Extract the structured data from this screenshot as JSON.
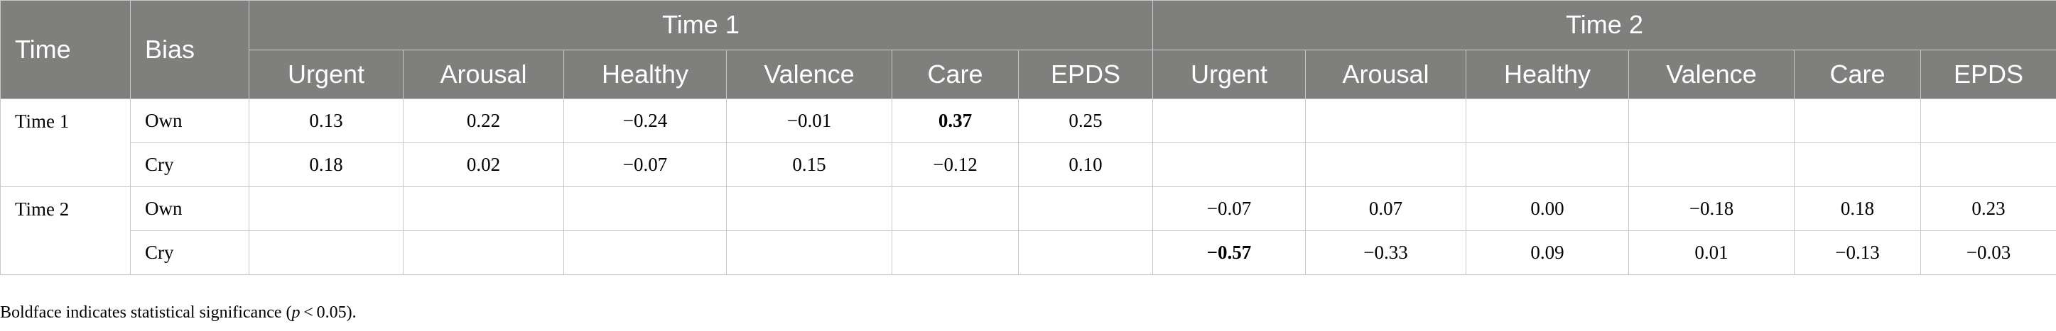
{
  "table": {
    "corner_time": "Time",
    "corner_bias": "Bias",
    "groups": [
      "Time 1",
      "Time 2"
    ],
    "columns": [
      "Urgent",
      "Arousal",
      "Healthy",
      "Valence",
      "Care",
      "EPDS",
      "Urgent",
      "Arousal",
      "Healthy",
      "Valence",
      "Care",
      "EPDS"
    ],
    "row_groups": [
      {
        "time": "Time 1",
        "rows": [
          {
            "bias": "Own",
            "cells": [
              "0.13",
              "0.22",
              "−0.24",
              "−0.01",
              "0.37",
              "0.25",
              "",
              "",
              "",
              "",
              "",
              ""
            ]
          },
          {
            "bias": "Cry",
            "cells": [
              "0.18",
              "0.02",
              "−0.07",
              "0.15",
              "−0.12",
              "0.10",
              "",
              "",
              "",
              "",
              "",
              ""
            ]
          }
        ]
      },
      {
        "time": "Time 2",
        "rows": [
          {
            "bias": "Own",
            "cells": [
              "",
              "",
              "",
              "",
              "",
              "",
              "−0.07",
              "0.07",
              "0.00",
              "−0.18",
              "0.18",
              "0.23"
            ]
          },
          {
            "bias": "Cry",
            "cells": [
              "",
              "",
              "",
              "",
              "",
              "",
              "−0.57",
              "−0.33",
              "0.09",
              "0.01",
              "−0.13",
              "−0.03"
            ]
          }
        ]
      }
    ],
    "bold_cells": [
      {
        "group": 0,
        "row": 0,
        "col": 4
      },
      {
        "group": 1,
        "row": 1,
        "col": 6
      }
    ]
  },
  "footnote": {
    "prefix": "Boldface indicates statistical significance (",
    "italic": "p",
    "suffix": " < 0.05)."
  },
  "colors": {
    "header_bg": "#7f7f7d",
    "header_text": "#ffffff",
    "border": "#c8c8c8"
  }
}
